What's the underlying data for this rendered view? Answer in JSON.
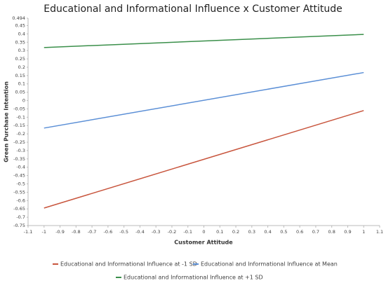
{
  "chart_data": {
    "type": "line",
    "title": "Educational and Informational Influence x Customer Attitude",
    "x_label": "Customer Attitude",
    "y_label": "Green Purchase Intention",
    "x": [
      -1,
      1
    ],
    "series": [
      {
        "name": "Educational and Informational Influence at -1 SD",
        "color": "#c8553d",
        "values": [
          -0.645,
          -0.06
        ]
      },
      {
        "name": "Educational and Informational Influence at Mean",
        "color": "#5b8fd6",
        "values": [
          -0.165,
          0.168
        ]
      },
      {
        "name": "Educational and Informational Influence at +1 SD",
        "color": "#3a8f4a",
        "values": [
          0.318,
          0.397
        ]
      }
    ],
    "xlim": [
      -1.1,
      1.1
    ],
    "xticks": [
      -1.1,
      -1,
      -0.9,
      -0.8,
      -0.7,
      -0.6,
      -0.5,
      -0.4,
      -0.3,
      -0.2,
      -0.1,
      0,
      0.1,
      0.2,
      0.3,
      0.4,
      0.5,
      0.6,
      0.7,
      0.8,
      0.9,
      1,
      1.1
    ],
    "ylim": [
      -0.75,
      0.494
    ],
    "yticks": [
      -0.75,
      -0.7,
      -0.65,
      -0.6,
      -0.55,
      -0.5,
      -0.45,
      -0.4,
      -0.35,
      -0.3,
      -0.25,
      -0.2,
      -0.15,
      -0.1,
      -0.05,
      0,
      0.05,
      0.1,
      0.15,
      0.2,
      0.25,
      0.3,
      0.35,
      0.4,
      0.45,
      0.494
    ],
    "grid": false
  }
}
